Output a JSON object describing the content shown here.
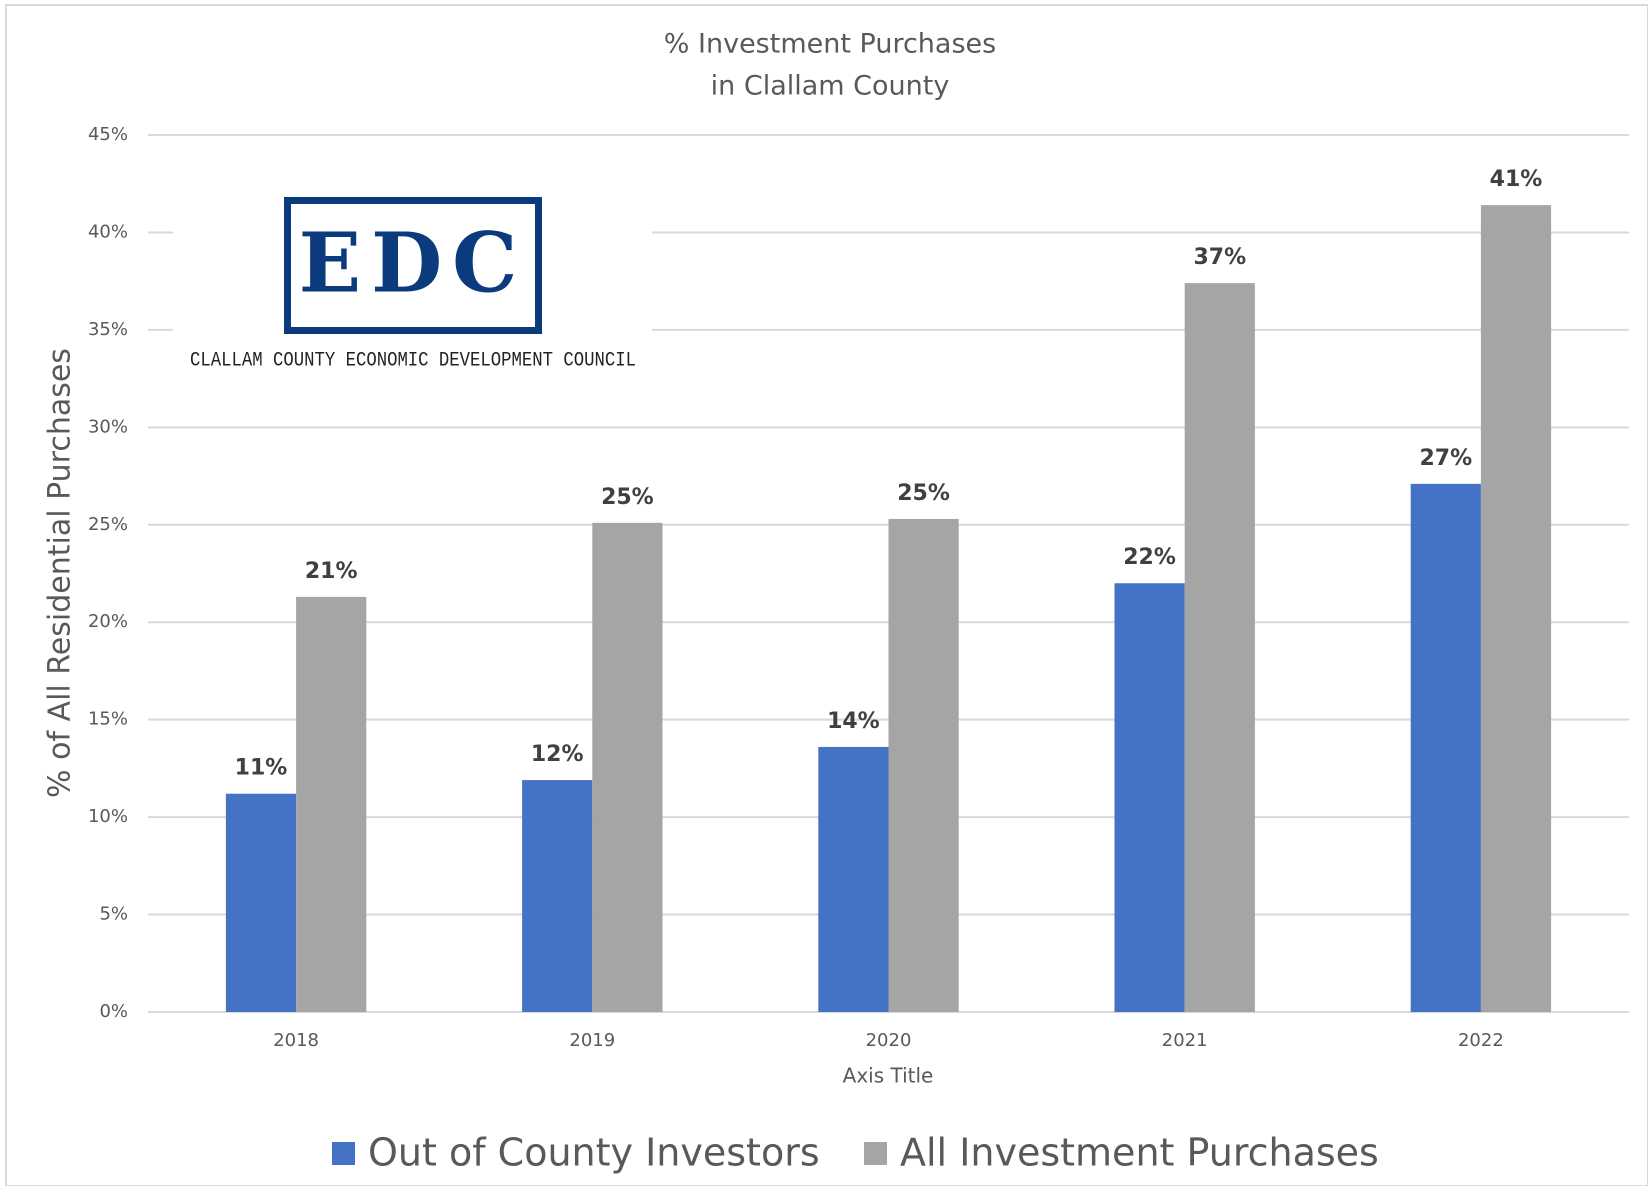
{
  "chart_data": {
    "type": "bar",
    "title": [
      "% Investment Purchases",
      "in Clallam County"
    ],
    "y_label": "% of All Residential Purchases",
    "x_label": "Axis Title",
    "categories": [
      "2018",
      "2019",
      "2020",
      "2021",
      "2022"
    ],
    "series": [
      {
        "name": "Out of County Investors",
        "color": "#4472c4",
        "values": [
          11.2,
          11.9,
          13.6,
          22.0,
          27.1
        ],
        "value_labels": [
          "11%",
          "12%",
          "14%",
          "22%",
          "27%"
        ]
      },
      {
        "name": "All Investment Purchases",
        "color": "#a5a5a5",
        "values": [
          21.3,
          25.1,
          25.3,
          37.4,
          41.4
        ],
        "value_labels": [
          "21%",
          "25%",
          "25%",
          "37%",
          "41%"
        ]
      }
    ],
    "ylim": [
      0,
      45
    ],
    "yticks": [
      {
        "value": 0,
        "label": "0%"
      },
      {
        "value": 5,
        "label": "5%"
      },
      {
        "value": 10,
        "label": "10%"
      },
      {
        "value": 15,
        "label": "15%"
      },
      {
        "value": 20,
        "label": "20%"
      },
      {
        "value": 25,
        "label": "25%"
      },
      {
        "value": 30,
        "label": "30%"
      },
      {
        "value": 35,
        "label": "35%"
      },
      {
        "value": 40,
        "label": "40%"
      },
      {
        "value": 45,
        "label": "45%"
      }
    ],
    "grid": true,
    "legend": "bottom"
  },
  "logo": {
    "text": "EDC",
    "subtitle": "CLALLAM COUNTY ECONOMIC DEVELOPMENT COUNCIL"
  }
}
